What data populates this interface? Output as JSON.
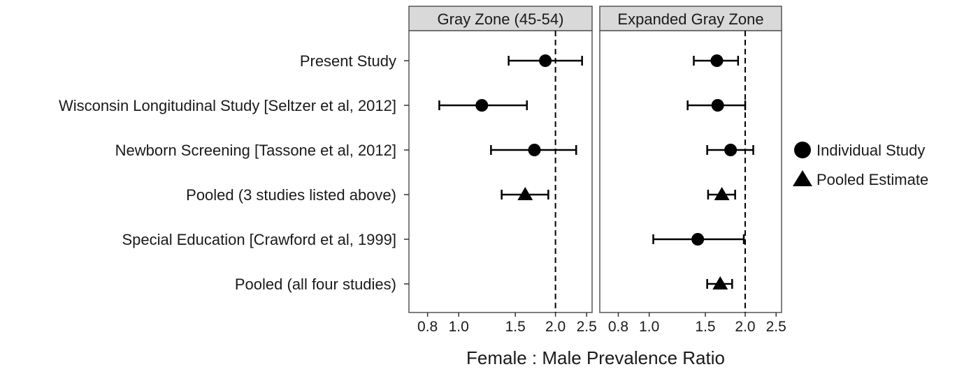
{
  "chart_data": {
    "type": "forest",
    "xlabel": "Female : Male Prevalence Ratio",
    "x_scale": "log",
    "xlim": [
      0.7,
      2.6
    ],
    "x_ticks": [
      0.8,
      1.0,
      1.5,
      2.0,
      2.5
    ],
    "x_tick_labels": [
      "0.8",
      "1.0",
      "1.5",
      "2.0",
      "2.5"
    ],
    "reference_line": 2.0,
    "studies": [
      "Present Study",
      "Wisconsin Longitudinal Study [Seltzer et al, 2012]",
      "Newborn Screening [Tassone et al, 2012]",
      "Pooled (3 studies listed above)",
      "Special Education [Crawford et al, 1999]",
      "Pooled (all four studies)"
    ],
    "panels": [
      {
        "title": "Gray Zone (45-54)",
        "points": [
          {
            "study": 0,
            "estimate": 1.86,
            "lower": 1.43,
            "upper": 2.42,
            "marker": "Individual Study"
          },
          {
            "study": 1,
            "estimate": 1.18,
            "lower": 0.87,
            "upper": 1.63,
            "marker": "Individual Study"
          },
          {
            "study": 2,
            "estimate": 1.72,
            "lower": 1.26,
            "upper": 2.32,
            "marker": "Individual Study"
          },
          {
            "study": 3,
            "estimate": 1.61,
            "lower": 1.36,
            "upper": 1.9,
            "marker": "Pooled Estimate"
          }
        ]
      },
      {
        "title": "Expanded Gray Zone",
        "points": [
          {
            "study": 0,
            "estimate": 1.63,
            "lower": 1.38,
            "upper": 1.9,
            "marker": "Individual Study"
          },
          {
            "study": 1,
            "estimate": 1.64,
            "lower": 1.32,
            "upper": 2.0,
            "marker": "Individual Study"
          },
          {
            "study": 2,
            "estimate": 1.8,
            "lower": 1.52,
            "upper": 2.12,
            "marker": "Individual Study"
          },
          {
            "study": 3,
            "estimate": 1.69,
            "lower": 1.53,
            "upper": 1.86,
            "marker": "Pooled Estimate"
          },
          {
            "study": 4,
            "estimate": 1.42,
            "lower": 1.03,
            "upper": 1.98,
            "marker": "Individual Study"
          },
          {
            "study": 5,
            "estimate": 1.67,
            "lower": 1.52,
            "upper": 1.82,
            "marker": "Pooled Estimate"
          }
        ]
      }
    ],
    "legend": {
      "position": "right",
      "items": [
        {
          "label": "Individual Study",
          "shape": "circle"
        },
        {
          "label": "Pooled Estimate",
          "shape": "triangle"
        }
      ]
    },
    "colors": {
      "marker": "#000000",
      "strip_fill": "#d9d9d9",
      "panel_border": "#555555",
      "text": "#1a1a1a"
    }
  }
}
